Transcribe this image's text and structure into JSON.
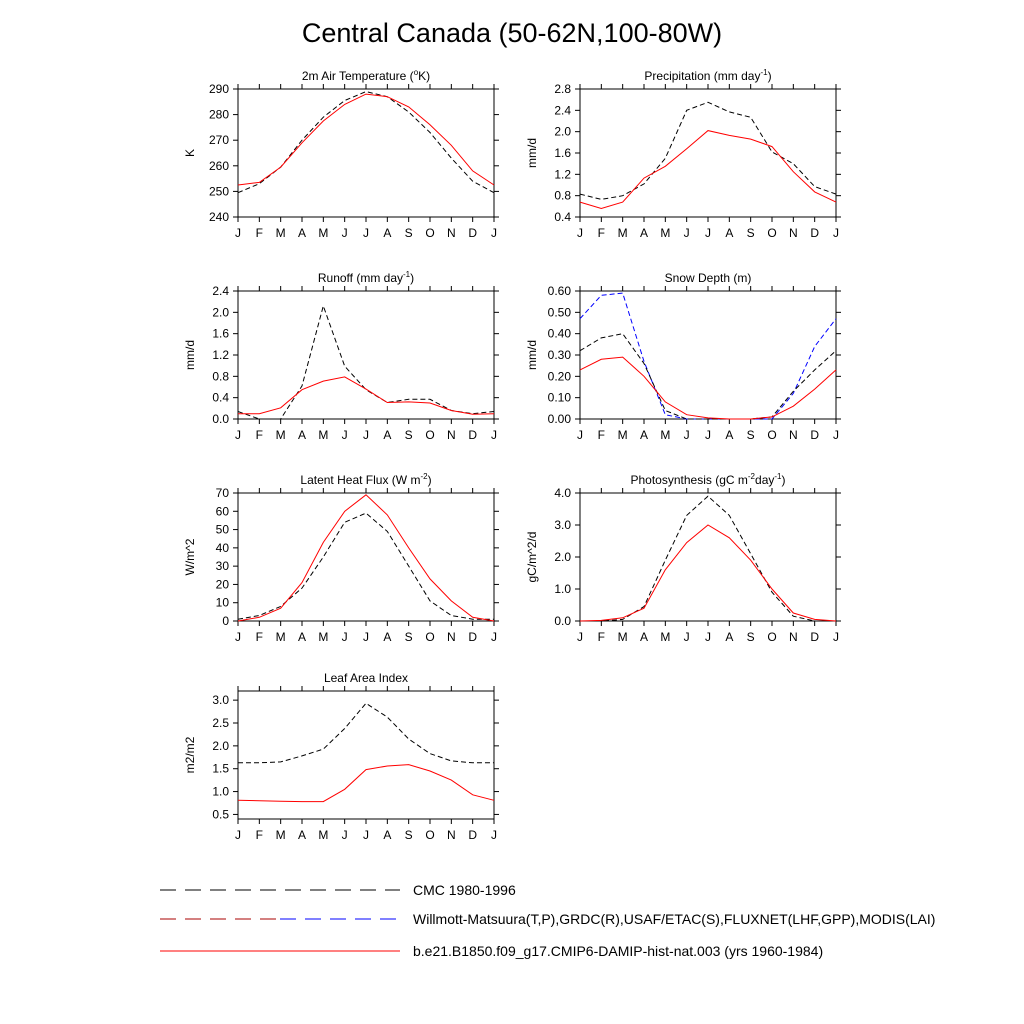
{
  "title": "Central Canada (50-62N,100-80W)",
  "colors": {
    "model": "#ff0000",
    "obs_black": "#000000",
    "obs_blue": "#0000ff"
  },
  "legend": {
    "cmc": "CMC 1980-1996",
    "obs": "Willmott-Matsuura(T,P),GRDC(R),USAF/ETAC(S),FLUXNET(LHF,GPP),MODIS(LAI)",
    "model": "b.e21.B1850.f09_g17.CMIP6-DAMIP-hist-nat.003 (yrs 1960-1984)"
  },
  "chart_data": [
    {
      "type": "line",
      "title": "2m Air Temperature (°K)",
      "title_main": "2m Air Temperature (",
      "title_sup": "o",
      "title_tail": "K)",
      "ylabel": "K",
      "ylim": [
        240,
        290
      ],
      "yticks": [
        240,
        250,
        260,
        270,
        280,
        290
      ],
      "ydec": 0,
      "categories": [
        "J",
        "F",
        "M",
        "A",
        "M",
        "J",
        "J",
        "A",
        "S",
        "O",
        "N",
        "D",
        "J"
      ],
      "series": [
        {
          "role": "obs",
          "values": [
            249.5,
            253,
            259.5,
            270,
            279,
            285.5,
            289,
            287,
            281,
            273,
            263,
            254,
            249.5
          ]
        },
        {
          "role": "model",
          "values": [
            252.5,
            253.5,
            259.5,
            269,
            277.5,
            284,
            288,
            287,
            283,
            276,
            268,
            258,
            252.5
          ]
        }
      ]
    },
    {
      "type": "line",
      "title": "Precipitation (mm day-1)",
      "title_main": "Precipitation (mm day",
      "title_sup": "-1",
      "title_tail": ")",
      "ylabel": "mm/d",
      "ylim": [
        0.4,
        2.8
      ],
      "yticks": [
        0.4,
        0.8,
        1.2,
        1.6,
        2.0,
        2.4,
        2.8
      ],
      "ydec": 1,
      "categories": [
        "J",
        "F",
        "M",
        "A",
        "M",
        "J",
        "J",
        "A",
        "S",
        "O",
        "N",
        "D",
        "J"
      ],
      "series": [
        {
          "role": "obs",
          "values": [
            0.83,
            0.73,
            0.8,
            1.02,
            1.5,
            2.4,
            2.55,
            2.37,
            2.27,
            1.62,
            1.4,
            0.97,
            0.83
          ]
        },
        {
          "role": "model",
          "values": [
            0.68,
            0.56,
            0.68,
            1.13,
            1.35,
            1.68,
            2.02,
            1.93,
            1.86,
            1.72,
            1.25,
            0.87,
            0.68
          ]
        }
      ]
    },
    {
      "type": "line",
      "title": "Runoff (mm day-1)",
      "title_main": "Runoff (mm day",
      "title_sup": "-1",
      "title_tail": ")",
      "ylabel": "mm/d",
      "ylim": [
        0,
        2.4
      ],
      "yticks": [
        0.0,
        0.4,
        0.8,
        1.2,
        1.6,
        2.0,
        2.4
      ],
      "ydec": 1,
      "categories": [
        "J",
        "F",
        "M",
        "A",
        "M",
        "J",
        "J",
        "A",
        "S",
        "O",
        "N",
        "D",
        "J"
      ],
      "series": [
        {
          "role": "obs",
          "values": [
            0.14,
            0.0,
            0.0,
            0.62,
            2.12,
            0.99,
            0.55,
            0.31,
            0.37,
            0.37,
            0.16,
            0.1,
            0.14
          ]
        },
        {
          "role": "model",
          "values": [
            0.1,
            0.1,
            0.21,
            0.55,
            0.71,
            0.79,
            0.56,
            0.31,
            0.32,
            0.3,
            0.16,
            0.09,
            0.1
          ]
        }
      ]
    },
    {
      "type": "line",
      "title": "Snow Depth (m)",
      "title_main": "Snow Depth (m)",
      "title_sup": "",
      "title_tail": "",
      "ylabel": "mm/d",
      "ylim": [
        0,
        0.6
      ],
      "yticks": [
        0.0,
        0.1,
        0.2,
        0.3,
        0.4,
        0.5,
        0.6
      ],
      "ydec": 2,
      "categories": [
        "J",
        "F",
        "M",
        "A",
        "M",
        "J",
        "J",
        "A",
        "S",
        "O",
        "N",
        "D",
        "J"
      ],
      "series": [
        {
          "role": "obs_blue",
          "values": [
            0.47,
            0.58,
            0.59,
            0.27,
            0.02,
            0.0,
            0.0,
            0.0,
            0.0,
            0.0,
            0.12,
            0.34,
            0.47
          ]
        },
        {
          "role": "obs",
          "values": [
            0.32,
            0.38,
            0.4,
            0.26,
            0.04,
            0.0,
            0.0,
            0.0,
            0.0,
            0.01,
            0.13,
            0.23,
            0.32
          ]
        },
        {
          "role": "model",
          "values": [
            0.23,
            0.28,
            0.29,
            0.2,
            0.08,
            0.02,
            0.005,
            0.0,
            0.0,
            0.01,
            0.06,
            0.14,
            0.23
          ]
        }
      ]
    },
    {
      "type": "line",
      "title": "Latent Heat Flux (W m-2)",
      "title_main": "Latent Heat Flux (W m",
      "title_sup": "-2",
      "title_tail": ")",
      "ylabel": "W/m^2",
      "ylim": [
        0,
        70
      ],
      "yticks": [
        0,
        10,
        20,
        30,
        40,
        50,
        60,
        70
      ],
      "ydec": 0,
      "categories": [
        "J",
        "F",
        "M",
        "A",
        "M",
        "J",
        "J",
        "A",
        "S",
        "O",
        "N",
        "D",
        "J"
      ],
      "series": [
        {
          "role": "obs",
          "values": [
            1,
            3,
            8,
            18,
            35,
            54,
            59,
            49,
            30,
            11,
            3,
            1,
            1
          ]
        },
        {
          "role": "model",
          "values": [
            0,
            2,
            7,
            21,
            43,
            60,
            69,
            58,
            40,
            23,
            11,
            2,
            0
          ]
        }
      ]
    },
    {
      "type": "line",
      "title": "Photosynthesis (gC m-2day-1)",
      "title_main": "Photosynthesis (gC m",
      "title_sup": "-2",
      "title_tail": "day",
      "title_sup2": "-1",
      "title_tail2": ")",
      "ylabel": "gC/m^2/d",
      "ylim": [
        0,
        4
      ],
      "yticks": [
        0.0,
        1.0,
        2.0,
        3.0,
        4.0
      ],
      "ydec": 1,
      "categories": [
        "J",
        "F",
        "M",
        "A",
        "M",
        "J",
        "J",
        "A",
        "S",
        "O",
        "N",
        "D",
        "J"
      ],
      "series": [
        {
          "role": "obs",
          "values": [
            0.0,
            0.0,
            0.05,
            0.45,
            1.9,
            3.3,
            3.9,
            3.3,
            2.1,
            0.9,
            0.15,
            0.0,
            0.0
          ]
        },
        {
          "role": "model",
          "values": [
            0.0,
            0.02,
            0.1,
            0.4,
            1.6,
            2.45,
            3.0,
            2.6,
            1.9,
            1.0,
            0.25,
            0.05,
            0.0
          ]
        }
      ]
    },
    {
      "type": "line",
      "title": "Leaf Area Index",
      "title_main": "Leaf Area Index",
      "title_sup": "",
      "title_tail": "",
      "ylabel": "m2/m2",
      "ylim": [
        0.4,
        3.2
      ],
      "yticks": [
        0.5,
        1.0,
        1.5,
        2.0,
        2.5,
        3.0
      ],
      "ydec": 1,
      "categories": [
        "J",
        "F",
        "M",
        "A",
        "M",
        "J",
        "J",
        "A",
        "S",
        "O",
        "N",
        "D",
        "J"
      ],
      "series": [
        {
          "role": "obs",
          "values": [
            1.63,
            1.63,
            1.65,
            1.78,
            1.93,
            2.38,
            2.93,
            2.63,
            2.15,
            1.83,
            1.67,
            1.63,
            1.63
          ]
        },
        {
          "role": "model",
          "values": [
            0.81,
            0.8,
            0.79,
            0.78,
            0.78,
            1.05,
            1.48,
            1.56,
            1.59,
            1.45,
            1.25,
            0.93,
            0.81
          ]
        }
      ]
    }
  ]
}
